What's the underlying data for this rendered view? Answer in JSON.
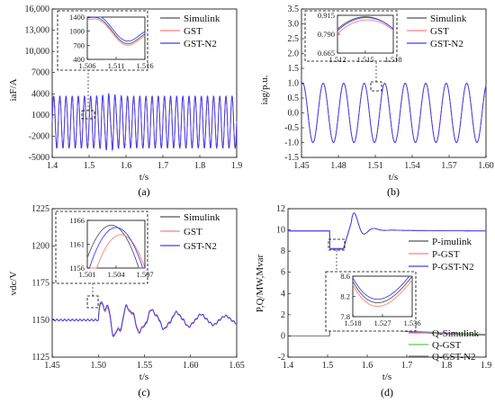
{
  "colors": {
    "simulink": "#555555",
    "gst": "#ff7f7f",
    "gst_n2": "#3d3dff",
    "q_simulink": "#cc55cc",
    "q_gst": "#55cc55",
    "q_gst_n2": "#777777"
  },
  "chart_data": [
    {
      "id": "a",
      "type": "line",
      "caption": "(a)",
      "ylabel": "iaF/A",
      "xlabel": "t/s",
      "xlim": [
        1.4,
        1.9
      ],
      "ylim": [
        -5000,
        16000
      ],
      "xticks": [
        "1.4",
        "1.5",
        "1.6",
        "1.7",
        "1.8",
        "1.9"
      ],
      "yticks": [
        "-5000",
        "-2000",
        "1000",
        "4000",
        "7000",
        "10,000",
        "13,000",
        "16,000"
      ],
      "legend": [
        "Simulink",
        "GST",
        "GST-N2"
      ],
      "inset": {
        "xlim": [
          1.506,
          1.516
        ],
        "ylim": [
          400,
          1400
        ],
        "xticks": [
          "1.506",
          "1.511",
          "1.516"
        ],
        "yticks": [
          "400",
          "700",
          "1000",
          "1400"
        ]
      }
    },
    {
      "id": "b",
      "type": "line",
      "caption": "(b)",
      "ylabel": "iag/p.u.",
      "xlabel": "t/s",
      "xlim": [
        1.45,
        1.6
      ],
      "ylim": [
        -1.5,
        3.5
      ],
      "xticks": [
        "1.45",
        "1.48",
        "1.51",
        "1.54",
        "1.57",
        "1.60"
      ],
      "yticks": [
        "-1.5",
        "-1.0",
        "-0.5",
        "0.0",
        "0.5",
        "1.0",
        "1.5",
        "2.0",
        "2.5",
        "3.0",
        "3.5"
      ],
      "legend": [
        "Simulink",
        "GST",
        "GST-N2"
      ],
      "inset": {
        "xlim": [
          1.512,
          1.518
        ],
        "ylim": [
          0.665,
          0.915
        ],
        "xticks": [
          "1.512",
          "1.515",
          "1.518"
        ],
        "yticks": [
          "0.665",
          "0.790",
          "0.915"
        ]
      }
    },
    {
      "id": "c",
      "type": "line",
      "caption": "(c)",
      "ylabel": "vdc/V",
      "xlabel": "t/s",
      "xlim": [
        1.45,
        1.65
      ],
      "ylim": [
        1125,
        1225
      ],
      "xticks": [
        "1.45",
        "1.50",
        "1.55",
        "1.60",
        "1.65"
      ],
      "yticks": [
        "1125",
        "1150",
        "1175",
        "1200",
        "1225"
      ],
      "legend": [
        "Simulink",
        "GST",
        "GST-N2"
      ],
      "inset": {
        "xlim": [
          1.501,
          1.507
        ],
        "ylim": [
          1156,
          1166
        ],
        "xticks": [
          "1.501",
          "1.504",
          "1.507"
        ],
        "yticks": [
          "1156",
          "1161",
          "1166"
        ]
      }
    },
    {
      "id": "d",
      "type": "line",
      "caption": "(d)",
      "ylabel": "P,Q/MW,Mvar",
      "xlabel": "t/s",
      "xlim": [
        1.4,
        1.9
      ],
      "ylim": [
        -2,
        12
      ],
      "xticks": [
        "1.4",
        "1.5",
        "1.6",
        "1.7",
        "1.8",
        "1.9"
      ],
      "yticks": [
        "-2",
        "0",
        "2",
        "4",
        "6",
        "8",
        "10",
        "12"
      ],
      "legend": [
        "P-imulink",
        "P-GST",
        "P-GST-N2",
        "Q-Simulink",
        "Q-GST",
        "Q-GST-N2"
      ],
      "inset": {
        "xlim": [
          1.518,
          1.536
        ],
        "ylim": [
          7.8,
          8.6
        ],
        "xticks": [
          "1.518",
          "1.527",
          "1.536"
        ],
        "yticks": [
          "7.8",
          "8.2",
          "8.6"
        ]
      }
    }
  ]
}
